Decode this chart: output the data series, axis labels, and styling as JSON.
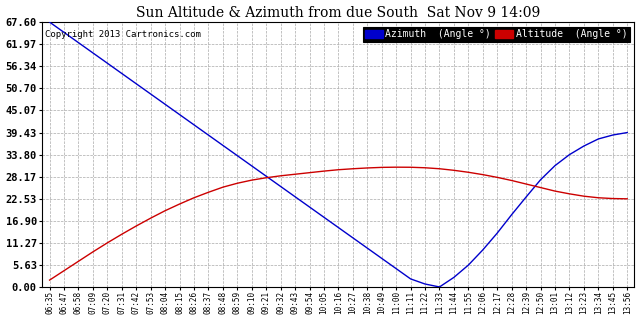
{
  "title": "Sun Altitude & Azimuth from due South  Sat Nov 9 14:09",
  "copyright": "Copyright 2013 Cartronics.com",
  "background_color": "#ffffff",
  "plot_bg_color": "#ffffff",
  "grid_color": "#aaaaaa",
  "x_labels": [
    "06:35",
    "06:47",
    "06:58",
    "07:09",
    "07:20",
    "07:31",
    "07:42",
    "07:53",
    "08:04",
    "08:15",
    "08:26",
    "08:37",
    "08:48",
    "08:59",
    "09:10",
    "09:21",
    "09:32",
    "09:43",
    "09:54",
    "10:05",
    "10:16",
    "10:27",
    "10:38",
    "10:49",
    "11:00",
    "11:11",
    "11:22",
    "11:33",
    "11:44",
    "11:55",
    "12:06",
    "12:17",
    "12:28",
    "12:39",
    "12:50",
    "13:01",
    "13:12",
    "13:23",
    "13:34",
    "13:45",
    "13:56"
  ],
  "y_ticks": [
    0.0,
    5.63,
    11.27,
    16.9,
    22.53,
    28.17,
    33.8,
    39.43,
    45.07,
    50.7,
    56.34,
    61.97,
    67.6
  ],
  "y_min": 0.0,
  "y_max": 67.6,
  "azimuth_color": "#0000cc",
  "altitude_color": "#cc0000",
  "legend_azimuth_bg": "#0000cc",
  "legend_altitude_bg": "#cc0000",
  "legend_text_color": "#ffffff",
  "azimuth_values": [
    67.6,
    64.98,
    62.36,
    59.74,
    57.12,
    54.5,
    51.88,
    49.26,
    46.64,
    44.02,
    41.4,
    38.78,
    36.16,
    33.54,
    30.92,
    28.3,
    25.68,
    23.06,
    20.44,
    17.82,
    15.2,
    12.58,
    9.96,
    7.34,
    4.72,
    2.1,
    0.8,
    0.05,
    2.5,
    5.63,
    9.5,
    13.8,
    18.5,
    23.0,
    27.4,
    31.0,
    33.8,
    36.0,
    37.8,
    38.8,
    39.43
  ],
  "altitude_values": [
    1.8,
    4.2,
    6.6,
    9.0,
    11.3,
    13.5,
    15.6,
    17.6,
    19.5,
    21.2,
    22.8,
    24.2,
    25.5,
    26.5,
    27.3,
    27.9,
    28.4,
    28.8,
    29.2,
    29.6,
    29.95,
    30.2,
    30.4,
    30.55,
    30.6,
    30.58,
    30.45,
    30.2,
    29.8,
    29.3,
    28.7,
    28.0,
    27.2,
    26.3,
    25.4,
    24.5,
    23.8,
    23.2,
    22.8,
    22.6,
    22.53
  ]
}
